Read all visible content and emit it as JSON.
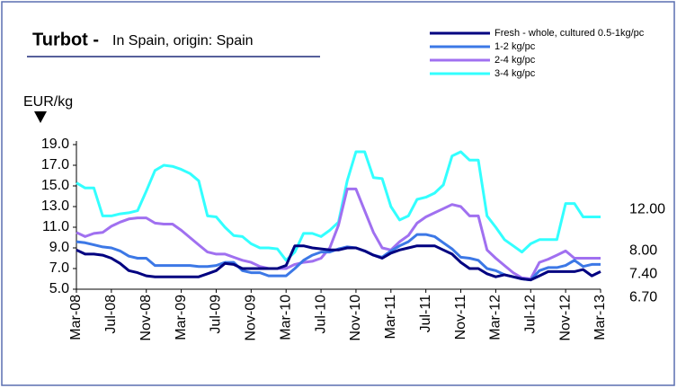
{
  "chart_data": {
    "type": "line",
    "title": "Turbot -",
    "subtitle": "In Spain, origin: Spain",
    "y_label": "EUR/kg",
    "categories": [
      "Mar-08",
      null,
      null,
      null,
      "Jul-08",
      null,
      null,
      null,
      "Nov-08",
      null,
      null,
      null,
      "Mar-09",
      null,
      null,
      null,
      "Jul-09",
      null,
      null,
      null,
      "Nov-09",
      null,
      null,
      null,
      "Mar-10",
      null,
      null,
      null,
      "Jul-10",
      null,
      null,
      null,
      "Nov-10",
      null,
      null,
      null,
      "Mar-11",
      null,
      null,
      null,
      "Jul-11",
      null,
      null,
      null,
      "Nov-11",
      null,
      null,
      null,
      "Mar-12",
      null,
      null,
      null,
      "Jul-12",
      null,
      null,
      null,
      "Nov-12",
      null,
      null,
      null,
      "Mar-13"
    ],
    "ylim": [
      5,
      19
    ],
    "yticks": [
      {
        "value": 5,
        "label": "5.0"
      },
      {
        "value": 7,
        "label": "7.0"
      },
      {
        "value": 9,
        "label": "9.0"
      },
      {
        "value": 11,
        "label": "11.0"
      },
      {
        "value": 13,
        "label": "13.0"
      },
      {
        "value": 15,
        "label": "15.0"
      },
      {
        "value": 17,
        "label": "17.0"
      },
      {
        "value": 19,
        "label": "19.0"
      }
    ],
    "grid": false,
    "legend": "top-right",
    "series": [
      {
        "name": "Fresh - whole, cultured 0.5-1kg/pc",
        "color": "#000080",
        "values": [
          8.8,
          8.4,
          8.4,
          8.3,
          8.0,
          7.5,
          6.8,
          6.6,
          6.3,
          6.2,
          6.2,
          6.2,
          6.2,
          6.2,
          6.2,
          6.5,
          6.8,
          7.5,
          7.4,
          7.0,
          7.0,
          7.0,
          7.0,
          7.0,
          7.3,
          9.2,
          9.2,
          9.0,
          8.9,
          8.8,
          8.8,
          9.0,
          9.0,
          8.7,
          8.3,
          8.0,
          8.5,
          8.8,
          9.0,
          9.2,
          9.2,
          9.2,
          8.8,
          8.4,
          7.6,
          7.0,
          7.0,
          6.5,
          6.2,
          6.4,
          6.2,
          6.0,
          5.9,
          6.3,
          6.7,
          6.7,
          6.7,
          6.7,
          6.9,
          6.3,
          6.7
        ],
        "value_labels": [
          null,
          null,
          null,
          null,
          null,
          null,
          null,
          null,
          null,
          null,
          null,
          null,
          null,
          null,
          null,
          null,
          null,
          null,
          null,
          null,
          null,
          null,
          null,
          null,
          null,
          null,
          null,
          null,
          null,
          null,
          null,
          null,
          null,
          null,
          null,
          null,
          null,
          null,
          null,
          null,
          null,
          null,
          null,
          null,
          null,
          null,
          null,
          null,
          null,
          null,
          null,
          null,
          null,
          null,
          null,
          null,
          null,
          null,
          null,
          null,
          "6.70"
        ]
      },
      {
        "name": "1-2 kg/pc",
        "color": "#3c78e6",
        "values": [
          9.6,
          9.5,
          9.3,
          9.1,
          9.0,
          8.7,
          8.2,
          8.0,
          8.0,
          7.3,
          7.3,
          7.3,
          7.3,
          7.3,
          7.2,
          7.2,
          7.3,
          7.6,
          7.6,
          6.8,
          6.6,
          6.6,
          6.3,
          6.3,
          6.3,
          7.0,
          7.8,
          8.3,
          8.6,
          8.6,
          8.9,
          9.1,
          9.0,
          8.7,
          8.3,
          8.1,
          8.7,
          9.2,
          9.6,
          10.3,
          10.3,
          10.1,
          9.5,
          8.9,
          8.1,
          8.0,
          7.8,
          7.0,
          6.8,
          6.4,
          6.2,
          6.0,
          5.9,
          6.8,
          7.1,
          7.1,
          7.3,
          7.8,
          7.2,
          7.4,
          7.4
        ],
        "value_labels": [
          null,
          null,
          null,
          null,
          null,
          null,
          null,
          null,
          null,
          null,
          null,
          null,
          null,
          null,
          null,
          null,
          null,
          null,
          null,
          null,
          null,
          null,
          null,
          null,
          null,
          null,
          null,
          null,
          null,
          null,
          null,
          null,
          null,
          null,
          null,
          null,
          null,
          null,
          null,
          null,
          null,
          null,
          null,
          null,
          null,
          null,
          null,
          null,
          null,
          null,
          null,
          null,
          null,
          null,
          null,
          null,
          null,
          null,
          null,
          null,
          "7.40"
        ]
      },
      {
        "name": "2-4 kg/pc",
        "color": "#a070f0",
        "values": [
          10.5,
          10.1,
          10.4,
          10.5,
          11.1,
          11.5,
          11.8,
          11.9,
          11.9,
          11.4,
          11.3,
          11.3,
          10.7,
          10.0,
          9.3,
          8.6,
          8.4,
          8.4,
          8.1,
          7.8,
          7.6,
          7.2,
          7.0,
          7.0,
          7.0,
          7.4,
          7.6,
          7.7,
          8.0,
          9.0,
          11.2,
          14.7,
          14.7,
          12.6,
          10.5,
          9.0,
          8.8,
          9.6,
          10.2,
          11.4,
          12.0,
          12.4,
          12.8,
          13.2,
          13.0,
          12.1,
          12.1,
          8.8,
          8.0,
          7.3,
          6.6,
          6.1,
          6.0,
          7.6,
          7.9,
          8.3,
          8.7,
          8.0,
          8.0,
          8.0,
          8.0
        ],
        "value_labels": [
          null,
          null,
          null,
          null,
          null,
          null,
          null,
          null,
          null,
          null,
          null,
          null,
          null,
          null,
          null,
          null,
          null,
          null,
          null,
          null,
          null,
          null,
          null,
          null,
          null,
          null,
          null,
          null,
          null,
          null,
          null,
          null,
          null,
          null,
          null,
          null,
          null,
          null,
          null,
          null,
          null,
          null,
          null,
          null,
          null,
          null,
          null,
          null,
          null,
          null,
          null,
          null,
          null,
          null,
          null,
          null,
          null,
          null,
          null,
          null,
          "8.00"
        ]
      },
      {
        "name": "3-4 kg/pc",
        "color": "#33ffff",
        "values": [
          15.3,
          14.8,
          14.8,
          12.1,
          12.1,
          12.3,
          12.4,
          12.6,
          14.5,
          16.5,
          17.0,
          16.9,
          16.6,
          16.2,
          15.5,
          12.1,
          12.0,
          11.0,
          10.2,
          10.1,
          9.4,
          9.0,
          9.0,
          8.9,
          7.8,
          8.6,
          10.4,
          10.4,
          10.1,
          10.7,
          11.5,
          15.5,
          18.3,
          18.3,
          15.8,
          15.7,
          13.0,
          11.7,
          12.1,
          13.7,
          13.9,
          14.3,
          15.1,
          17.9,
          18.3,
          17.5,
          17.5,
          12.1,
          11.0,
          9.8,
          9.2,
          8.6,
          9.4,
          9.8,
          9.8,
          9.8,
          13.3,
          13.3,
          12.0,
          12.0,
          12.0
        ],
        "value_labels": [
          null,
          null,
          null,
          null,
          null,
          null,
          null,
          null,
          null,
          null,
          null,
          null,
          null,
          null,
          null,
          null,
          null,
          null,
          null,
          null,
          null,
          null,
          null,
          null,
          null,
          null,
          null,
          null,
          null,
          null,
          null,
          null,
          null,
          null,
          null,
          null,
          null,
          null,
          null,
          null,
          null,
          null,
          null,
          null,
          null,
          null,
          null,
          null,
          null,
          null,
          null,
          null,
          null,
          null,
          null,
          null,
          null,
          null,
          null,
          null,
          "12.00"
        ]
      }
    ]
  }
}
